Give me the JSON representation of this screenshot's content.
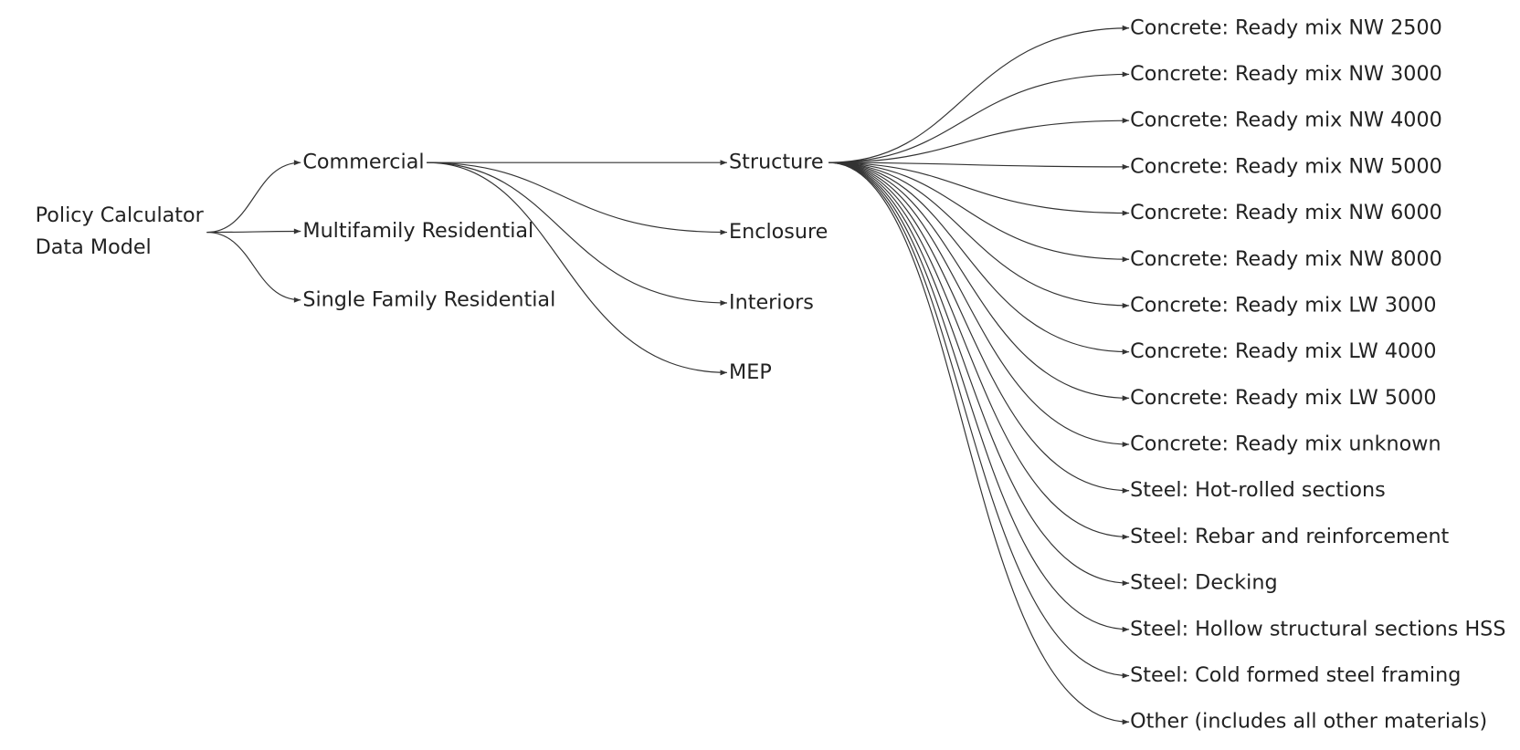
{
  "root": {
    "lines": [
      "Policy Calculator",
      "Data Model"
    ]
  },
  "building_types": [
    "Commercial",
    "Multifamily Residential",
    "Single Family Residential"
  ],
  "categories": [
    "Structure",
    "Enclosure",
    "Interiors",
    "MEP"
  ],
  "materials": [
    "Concrete: Ready mix NW 2500",
    "Concrete: Ready mix NW 3000",
    "Concrete: Ready mix NW 4000",
    "Concrete: Ready mix NW 5000",
    "Concrete: Ready mix NW 6000",
    "Concrete: Ready mix NW 8000",
    "Concrete: Ready mix LW 3000",
    "Concrete: Ready mix LW 4000",
    "Concrete: Ready mix LW 5000",
    "Concrete: Ready mix unknown",
    "Steel: Hot-rolled sections",
    "Steel: Rebar and reinforcement",
    "Steel: Decking",
    "Steel: Hollow structural sections HSS",
    "Steel: Cold formed steel framing",
    "Other (includes all other materials)"
  ]
}
